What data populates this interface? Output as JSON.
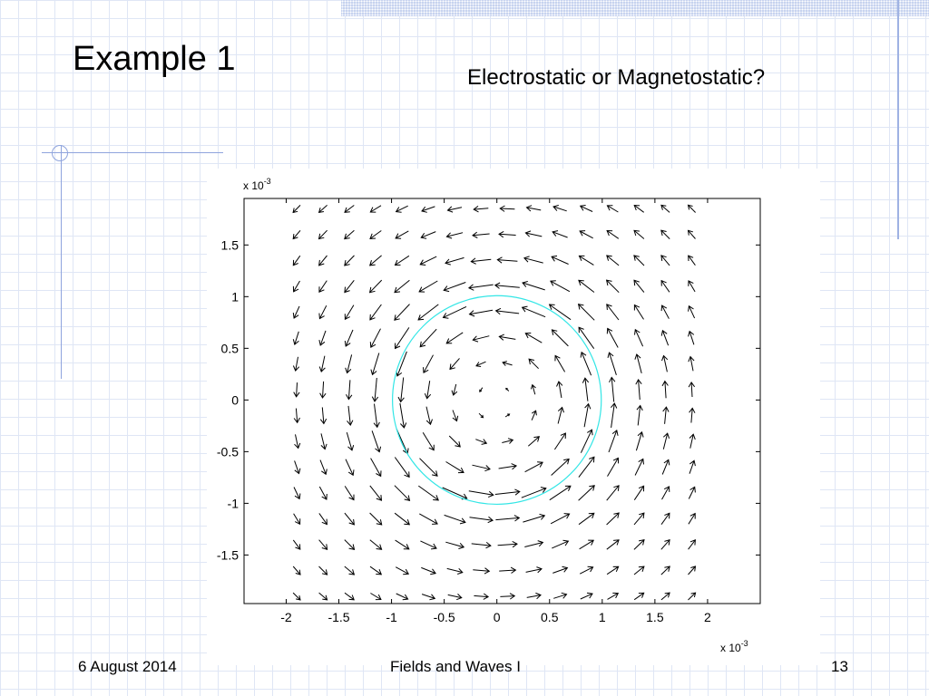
{
  "slide": {
    "title": "Example 1",
    "subtitle": "Electrostatic or Magnetostatic?",
    "footer_date": "6 August 2014",
    "footer_center": "Fields and Waves I",
    "page_number": "13"
  },
  "colors": {
    "circle": "#33e6e6",
    "arrow": "#000000",
    "grid": "#dfe6f5",
    "accent": "#8fa4dd"
  },
  "chart_data": {
    "type": "quiver",
    "title": "",
    "xlabel": "",
    "ylabel": "",
    "x_multiplier": "x 10",
    "x_multiplier_exp": "-3",
    "y_multiplier": "x 10",
    "y_multiplier_exp": "-3",
    "xlim": [
      -2.4,
      2.5
    ],
    "ylim": [
      -1.97,
      1.95
    ],
    "xticks": [
      -2,
      -1.5,
      -1,
      -0.5,
      0,
      0.5,
      1,
      1.5,
      2
    ],
    "xtick_labels": [
      "-2",
      "-1.5",
      "-1",
      "-0.5",
      "0",
      "0.5",
      "1",
      "1.5",
      "2"
    ],
    "yticks": [
      -1.5,
      -1,
      -0.5,
      0,
      0.5,
      1,
      1.5
    ],
    "ytick_labels": [
      "-1.5",
      "-1",
      "-0.5",
      "0",
      "0.5",
      "1",
      "1.5"
    ],
    "grid": false,
    "field": "circulating vector field, counter-clockwise rotation about the origin; magnitude grows linearly to r = 1, then decays as 1/r",
    "grid_points": {
      "x": [
        -1.9,
        -1.65,
        -1.4,
        -1.15,
        -0.9,
        -0.65,
        -0.4,
        -0.15,
        0.1,
        0.35,
        0.6,
        0.85,
        1.1,
        1.35,
        1.6,
        1.85
      ],
      "y": [
        1.85,
        1.6,
        1.35,
        1.1,
        0.85,
        0.6,
        0.35,
        0.1,
        -0.15,
        -0.4,
        -0.65,
        -0.9,
        -1.15,
        -1.4,
        -1.65,
        -1.9
      ]
    },
    "circle": {
      "center": [
        0,
        0
      ],
      "radius": 1
    }
  }
}
